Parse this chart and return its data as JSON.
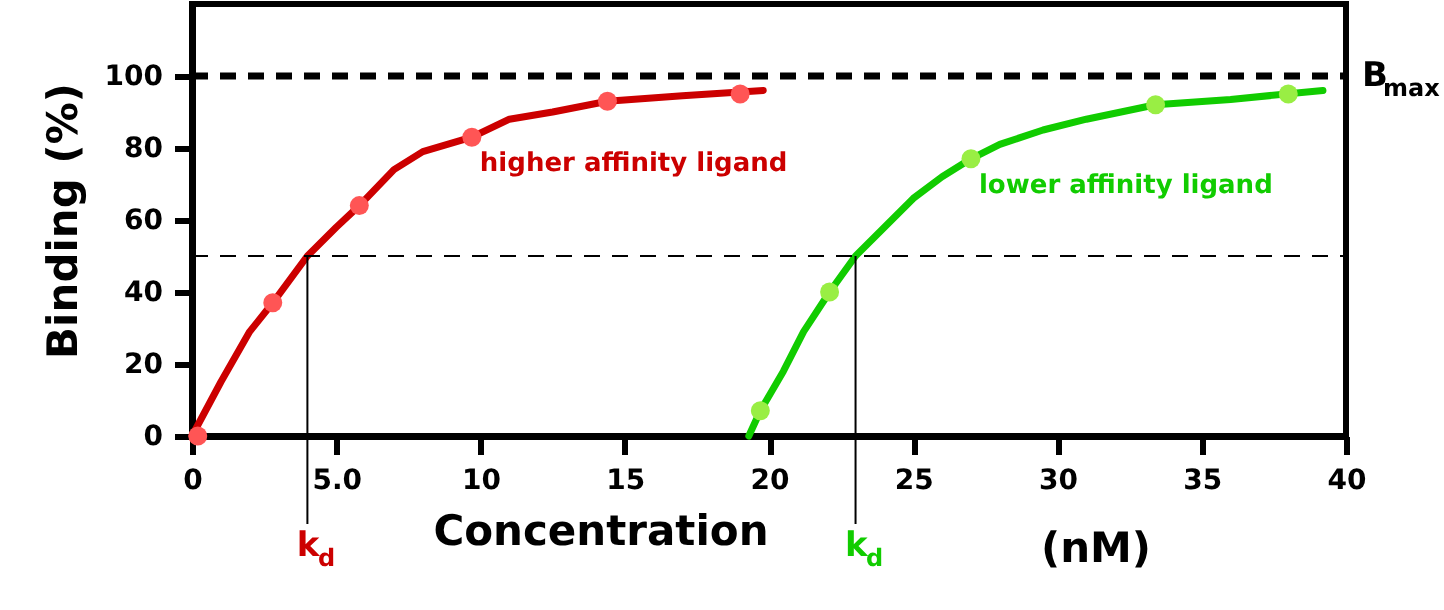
{
  "chart_data": {
    "type": "line",
    "xlabel": "Concentration",
    "ylabel": "Binding (%)",
    "xlim": [
      0,
      40
    ],
    "ylim": [
      0,
      120
    ],
    "xticks": [
      0,
      {
        "value": 5,
        "label": "5.0"
      },
      10,
      15,
      20,
      25,
      30,
      35,
      40
    ],
    "yticks": [
      0,
      20,
      40,
      60,
      80,
      100
    ],
    "grid": false,
    "line_style": "solid",
    "series": [
      {
        "name": "higher affinity ligand",
        "color": "#cc0000",
        "x": [
          0,
          1,
          2,
          2.8,
          4,
          5,
          5.8,
          7,
          8,
          9.7,
          11,
          12.5,
          14.4,
          17,
          19.8
        ],
        "values": [
          0,
          15,
          29,
          37,
          50,
          58,
          64,
          74,
          79,
          83,
          88,
          90,
          93,
          94.5,
          96
        ]
      },
      {
        "name": "lower affinity ligand",
        "color": "#11cc00",
        "x": [
          19.3,
          19.7,
          20.5,
          21.2,
          22.1,
          23,
          24,
          25,
          26,
          27,
          28,
          29.5,
          31,
          33.4,
          36,
          39.2
        ],
        "values": [
          0,
          7,
          18,
          29,
          40,
          50,
          58,
          66,
          72,
          77,
          81,
          85,
          88,
          92,
          93.5,
          96
        ]
      },
      {
        "type": "scatter",
        "color": "#ff5555",
        "x": [
          0.2,
          2.8,
          5.8,
          9.7,
          14.4,
          19
        ],
        "values": [
          0,
          37,
          64,
          83,
          93,
          95
        ]
      },
      {
        "type": "scatter",
        "color": "#99ee44",
        "x": [
          19.7,
          22.1,
          27,
          33.4,
          38
        ],
        "values": [
          7,
          40,
          77,
          92,
          95
        ]
      }
    ],
    "ref_lines": [
      {
        "axis": "y",
        "value": 100,
        "label": "B$_{max}$",
        "color": "#000000",
        "line_style": "dashed"
      },
      {
        "axis": "y",
        "value": 50,
        "label": null,
        "color": "#000000",
        "line_style": "dashed"
      },
      {
        "axis": "x",
        "value": 4,
        "label": "k$_{d}$",
        "color": "#000000",
        "line_style": "solid"
      },
      {
        "axis": "x",
        "value": 23,
        "label": "k$_{d}$",
        "color": "#000000",
        "line_style": "solid"
      }
    ],
    "annotations": [
      "(nM)"
    ]
  }
}
